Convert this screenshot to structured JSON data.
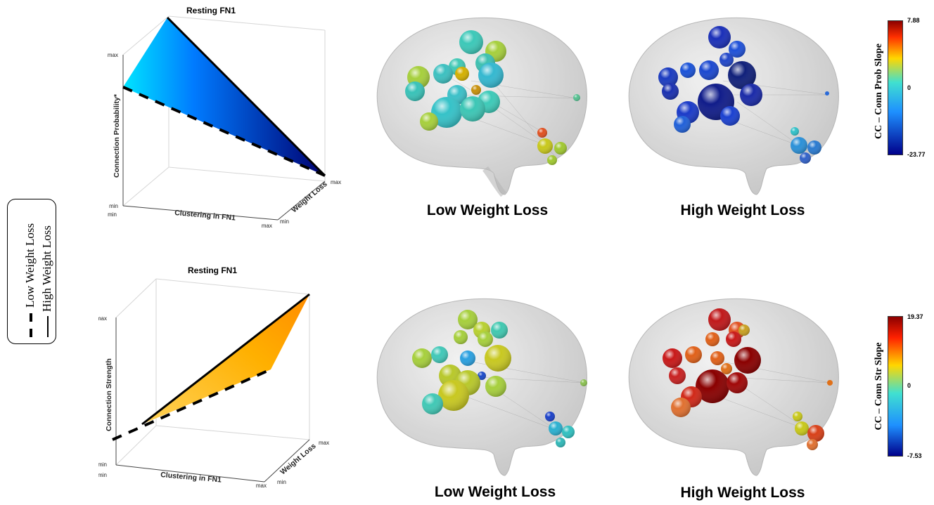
{
  "legend": {
    "low_label": "Low Weight Loss",
    "high_label": "High Weight Loss"
  },
  "plots": [
    {
      "title": "Resting FN1",
      "zlabel": "Connection Probability*",
      "xlabel": "Clustering in FN1",
      "ylabel": "Weight Loss",
      "ticks": {
        "max": "max",
        "min": "min"
      }
    },
    {
      "title": "Resting FN1",
      "zlabel": "Connection Strength",
      "xlabel": "Clustering in FN1",
      "ylabel": "Weight Loss",
      "ticks": {
        "max": "max",
        "min": "min"
      }
    }
  ],
  "brains": {
    "top_left_caption": "Low Weight Loss",
    "top_right_caption": "High Weight Loss",
    "bottom_left_caption": "Low Weight Loss",
    "bottom_right_caption": "High Weight Loss"
  },
  "colorbars": [
    {
      "label": "CC – Conn Prob Slope",
      "max": "7.88",
      "mid": "0",
      "min": "-23.77",
      "colors": [
        "#8b0000",
        "#ff4500",
        "#ffd700",
        "#40e0d0",
        "#1e90ff",
        "#00008b"
      ]
    },
    {
      "label": "CC – Conn Str Slope",
      "max": "19.37",
      "mid": "0",
      "min": "-7.53",
      "colors": [
        "#8b0000",
        "#ff4500",
        "#ffd700",
        "#40e0d0",
        "#1e90ff",
        "#00008b"
      ]
    }
  ]
}
